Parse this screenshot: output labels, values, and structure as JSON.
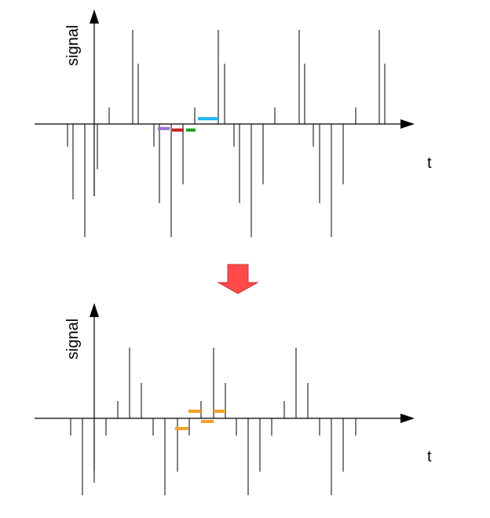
{
  "colors": {
    "axis": "#000000",
    "spike": "#000000",
    "arrow_fill": "#ff4a4a",
    "arrow_edge": "#c83232"
  },
  "top_panel": {
    "ylabel": "signal",
    "xlabel": "t",
    "spikes": [
      {
        "t": 86,
        "v": -0.3
      },
      {
        "t": 93,
        "v": -1.0
      },
      {
        "t": 108,
        "v": -1.5
      },
      {
        "t": 120,
        "v": -0.8
      },
      {
        "t": 124,
        "v": -0.6
      },
      {
        "t": 139,
        "v": 0.22
      },
      {
        "t": 169,
        "v": 1.25
      },
      {
        "t": 176,
        "v": 0.8
      },
      {
        "t": 196,
        "v": -0.3
      },
      {
        "t": 203,
        "v": -1.05
      },
      {
        "t": 218,
        "v": -1.5
      },
      {
        "t": 233,
        "v": -0.8
      },
      {
        "t": 248,
        "v": 0.22
      },
      {
        "t": 278,
        "v": 1.25
      },
      {
        "t": 286,
        "v": 0.8
      },
      {
        "t": 298,
        "v": -0.3
      },
      {
        "t": 305,
        "v": -1.05
      },
      {
        "t": 320,
        "v": -1.5
      },
      {
        "t": 335,
        "v": -0.8
      },
      {
        "t": 350,
        "v": 0.22
      },
      {
        "t": 381,
        "v": 1.25
      },
      {
        "t": 388,
        "v": 0.8
      },
      {
        "t": 399,
        "v": -0.3
      },
      {
        "t": 407,
        "v": -1.05
      },
      {
        "t": 422,
        "v": -1.5
      },
      {
        "t": 437,
        "v": -0.8
      },
      {
        "t": 453,
        "v": 0.22
      },
      {
        "t": 483,
        "v": 1.25
      },
      {
        "t": 490,
        "v": 0.8
      }
    ],
    "markers": [
      {
        "t0": 201,
        "t1": 216,
        "v": -0.06,
        "color": "#9b6fcf"
      },
      {
        "t0": 219,
        "t1": 234,
        "v": -0.08,
        "color": "#c81e1e"
      },
      {
        "t0": 237,
        "t1": 249,
        "v": -0.08,
        "color": "#1ea01e"
      },
      {
        "t0": 252,
        "t1": 278,
        "v": 0.07,
        "color": "#1eb4f0"
      }
    ]
  },
  "bottom_panel": {
    "ylabel": "signal",
    "xlabel": "t",
    "spikes": [
      {
        "t": 90,
        "v": -0.22
      },
      {
        "t": 105,
        "v": -0.98
      },
      {
        "t": 120,
        "v": -0.82
      },
      {
        "t": 135,
        "v": -0.22
      },
      {
        "t": 150,
        "v": 0.22
      },
      {
        "t": 165,
        "v": 0.9
      },
      {
        "t": 180,
        "v": 0.45
      },
      {
        "t": 195,
        "v": -0.22
      },
      {
        "t": 210,
        "v": -0.98
      },
      {
        "t": 226,
        "v": -0.68
      },
      {
        "t": 241,
        "v": -0.22
      },
      {
        "t": 256,
        "v": 0.22
      },
      {
        "t": 272,
        "v": 0.9
      },
      {
        "t": 287,
        "v": 0.45
      },
      {
        "t": 301,
        "v": -0.22
      },
      {
        "t": 316,
        "v": -0.98
      },
      {
        "t": 331,
        "v": -0.68
      },
      {
        "t": 346,
        "v": -0.22
      },
      {
        "t": 362,
        "v": 0.22
      },
      {
        "t": 377,
        "v": 0.9
      },
      {
        "t": 392,
        "v": 0.45
      },
      {
        "t": 407,
        "v": -0.22
      },
      {
        "t": 422,
        "v": -0.98
      },
      {
        "t": 437,
        "v": -0.68
      },
      {
        "t": 453,
        "v": -0.22
      }
    ],
    "markers": [
      {
        "t0": 223,
        "t1": 240,
        "v": -0.13,
        "color": "#f5a028"
      },
      {
        "t0": 240,
        "t1": 256,
        "v": 0.09,
        "color": "#f5a028"
      },
      {
        "t0": 256,
        "t1": 272,
        "v": -0.04,
        "color": "#f5a028"
      },
      {
        "t0": 272,
        "t1": 287,
        "v": 0.09,
        "color": "#f5a028"
      }
    ]
  }
}
